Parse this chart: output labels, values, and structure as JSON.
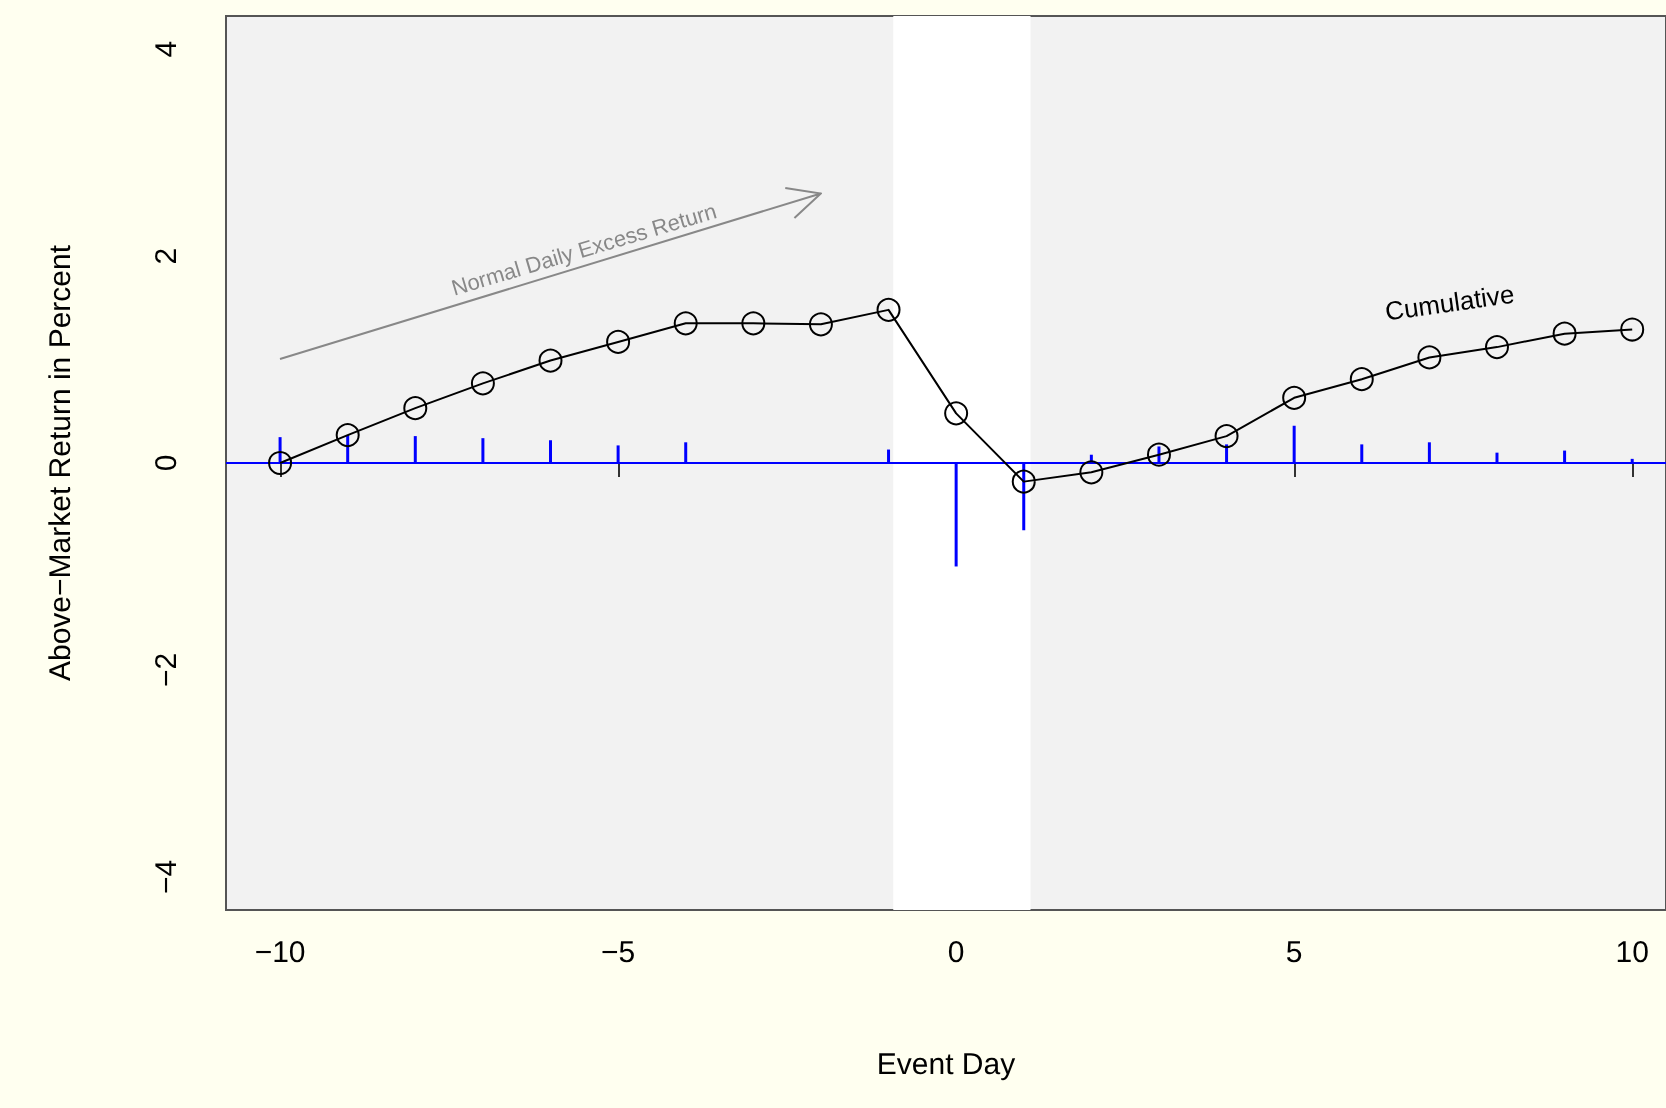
{
  "chart_data": {
    "type": "line",
    "xlabel": "Event Day",
    "ylabel": "Above−Market Return in Percent",
    "x": [
      -10,
      -9,
      -8,
      -7,
      -6,
      -5,
      -4,
      -3,
      -2,
      -1,
      0,
      1,
      2,
      3,
      4,
      5,
      6,
      7,
      8,
      9,
      10
    ],
    "xlim": [
      -10.8,
      10.5
    ],
    "ylim": [
      -4.32,
      4.32
    ],
    "xticks": [
      -10,
      -5,
      0,
      5,
      10
    ],
    "yticks": [
      -4,
      -2,
      0,
      2,
      4
    ],
    "grid": false,
    "legend": false,
    "marker": "circle",
    "series": [
      {
        "type": "bar",
        "color": "#0000ff",
        "values": [
          0.25,
          0.27,
          0.26,
          0.24,
          0.22,
          0.17,
          0.2,
          0,
          0,
          0.13,
          -1.0,
          -0.65,
          0.08,
          0.16,
          0.18,
          0.36,
          0.18,
          0.2,
          0.1,
          0.12,
          0.04
        ]
      },
      {
        "name": "Cumulative",
        "color": "#000000",
        "values": [
          0,
          0.27,
          0.53,
          0.77,
          0.99,
          1.17,
          1.35,
          1.35,
          1.34,
          1.48,
          0.48,
          -0.18,
          -0.09,
          0.08,
          0.26,
          0.63,
          0.81,
          1.02,
          1.12,
          1.25,
          1.29
        ]
      }
    ],
    "annotations": [
      "Normal Daily Excess Return"
    ],
    "ref_lines": [
      {
        "axis": "y",
        "value": 0,
        "color": "#0000ff"
      }
    ],
    "bands": [
      {
        "axis": "x",
        "from": -0.93,
        "to": 1.1,
        "color": "#ffffff"
      }
    ]
  }
}
